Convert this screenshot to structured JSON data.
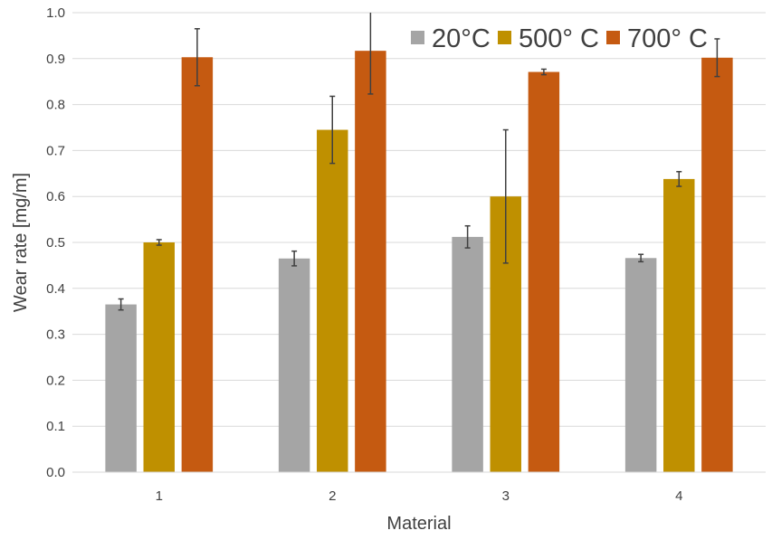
{
  "chart_data": {
    "type": "bar",
    "title": "",
    "xlabel": "Material",
    "ylabel": "Wear rate [mg/m]",
    "categories": [
      "1",
      "2",
      "3",
      "4"
    ],
    "ylim": [
      0,
      1.0
    ],
    "yticks": [
      "0.0",
      "0.1",
      "0.2",
      "0.3",
      "0.4",
      "0.5",
      "0.6",
      "0.7",
      "0.8",
      "0.9",
      "1.0"
    ],
    "grid": true,
    "legend_position": "top-right",
    "series": [
      {
        "name": "20°C",
        "color": "#a5a5a5",
        "values": [
          0.365,
          0.465,
          0.512,
          0.466
        ],
        "errors": [
          0.012,
          0.016,
          0.024,
          0.008
        ]
      },
      {
        "name": "500° C",
        "color": "#bf9000",
        "values": [
          0.5,
          0.745,
          0.6,
          0.638
        ],
        "errors": [
          0.006,
          0.073,
          0.145,
          0.016
        ]
      },
      {
        "name": "700° C",
        "color": "#c55a11",
        "values": [
          0.903,
          0.917,
          0.871,
          0.902
        ],
        "errors": [
          0.062,
          0.094,
          0.006,
          0.041
        ]
      }
    ]
  }
}
